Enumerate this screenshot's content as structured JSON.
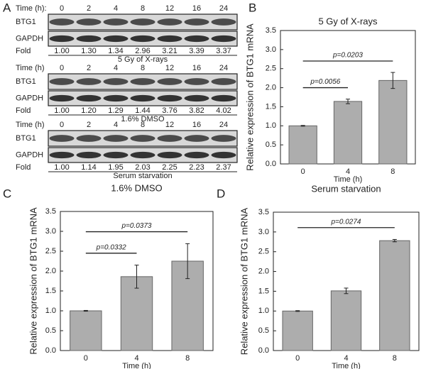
{
  "panels": [
    "A",
    "B",
    "C",
    "D"
  ],
  "blots": {
    "row_labels": [
      "BTG1",
      "GAPDH",
      "Fold"
    ],
    "times": [
      "0",
      "2",
      "4",
      "8",
      "12",
      "16",
      "24"
    ],
    "groups": [
      {
        "time_label": "Time (h):",
        "folds": [
          "1.00",
          "1.30",
          "1.34",
          "2.96",
          "3.21",
          "3.39",
          "3.37"
        ],
        "caption": "5 Gy of X-rays"
      },
      {
        "time_label": "Time (h)",
        "folds": [
          "1.00",
          "1.20",
          "1.29",
          "1.44",
          "3.76",
          "3.82",
          "4.02"
        ],
        "caption": "1.6%  DMSO"
      },
      {
        "time_label": "Time (h)",
        "folds": [
          "1.00",
          "1.14",
          "1.95",
          "2.03",
          "2.25",
          "2.23",
          "2.37"
        ],
        "caption": "Serum starvation"
      }
    ]
  },
  "chart_data": [
    {
      "type": "bar",
      "title": "5 Gy of X-rays",
      "y_label": "Relative expression of BTG1 mRNA",
      "x_label": "Time (h)",
      "categories": [
        "0",
        "4",
        "8"
      ],
      "values": [
        1.0,
        1.64,
        2.19
      ],
      "errors": [
        0.01,
        0.06,
        0.21
      ],
      "color": "#adadad",
      "ylim": [
        0,
        3.5
      ],
      "yticks": [
        {
          "value": 0,
          "label": "0.0"
        },
        0.5,
        {
          "value": 1,
          "label": "1.0"
        },
        1.5,
        {
          "value": 2,
          "label": "2.0"
        },
        2.5,
        {
          "value": 3,
          "label": "3.0"
        },
        3.5
      ],
      "annotations": [
        {
          "label": "p=0.0056",
          "categories": [
            "0",
            "4"
          ]
        },
        {
          "label": "p=0.0203",
          "categories": [
            "0",
            "8"
          ]
        }
      ]
    },
    {
      "type": "bar",
      "title": "1.6% DMSO",
      "y_label": "Relative expression of BTG1 mRNA",
      "x_label": "Time (h)",
      "categories": [
        "0",
        "4",
        "8"
      ],
      "values": [
        1.0,
        1.86,
        2.25
      ],
      "errors": [
        0.01,
        0.29,
        0.44
      ],
      "color": "#adadad",
      "ylim": [
        0,
        3.5
      ],
      "yticks": [
        {
          "value": 0,
          "label": "0.0"
        },
        0.5,
        {
          "value": 1,
          "label": "1.0"
        },
        1.5,
        {
          "value": 2,
          "label": "2.0"
        },
        2.5,
        {
          "value": 3,
          "label": "3.0"
        },
        3.5
      ],
      "annotations": [
        {
          "label": "p=0.0332",
          "categories": [
            "0",
            "4"
          ]
        },
        {
          "label": "p=0.0373",
          "categories": [
            "0",
            "8"
          ]
        }
      ]
    },
    {
      "type": "bar",
      "title": "Serum starvation",
      "y_label": "Relative expression of BTG1 mRNA",
      "x_label": "Time (h)",
      "categories": [
        "0",
        "4",
        "8"
      ],
      "values": [
        1.0,
        1.51,
        2.78
      ],
      "errors": [
        0.01,
        0.07,
        0.03
      ],
      "color": "#adadad",
      "ylim": [
        0,
        3.5
      ],
      "yticks": [
        {
          "value": 0,
          "label": "0.0"
        },
        0.5,
        {
          "value": 1,
          "label": "1.0"
        },
        1.5,
        {
          "value": 2,
          "label": "2.0"
        },
        2.5,
        {
          "value": 3,
          "label": "3.0"
        },
        3.5
      ],
      "annotations": [
        {
          "label": "p=0.0274",
          "categories": [
            "0",
            "8"
          ]
        }
      ]
    }
  ]
}
